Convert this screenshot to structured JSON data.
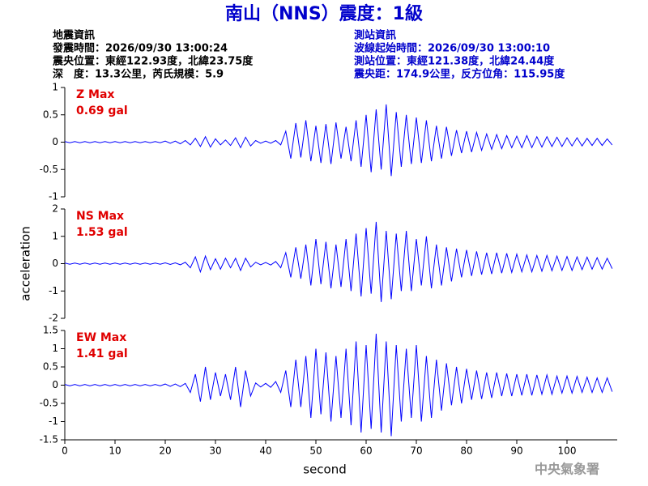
{
  "header": {
    "title": "南山（NNS）震度：1級",
    "left": [
      "地震資訊",
      "發震時間：2026/09/30 13:00:24",
      "震央位置：東經122.93度，北緯23.75度",
      "深　度：13.3公里，芮氏規模：5.9"
    ],
    "right": [
      "測站資訊",
      "波線起始時間：2026/09/30 13:00:10",
      "測站位置：東經121.38度，北緯24.44度",
      "震央距：174.9公里，反方位角：115.95度"
    ],
    "watermark": "中央氣象署"
  },
  "chart_data": [
    {
      "type": "line",
      "annotations": [
        "Z Max",
        "0.69 gal"
      ],
      "color": "#0000ff",
      "xlim": [
        0,
        110
      ],
      "ylim": [
        -1,
        1
      ],
      "yticks": [
        -1,
        -0.5,
        0,
        0.5,
        1
      ],
      "x": [
        0,
        1,
        2,
        3,
        4,
        5,
        6,
        7,
        8,
        9,
        10,
        11,
        12,
        13,
        14,
        15,
        16,
        17,
        18,
        19,
        20,
        21,
        22,
        23,
        24,
        25,
        26,
        27,
        28,
        29,
        30,
        31,
        32,
        33,
        34,
        35,
        36,
        37,
        38,
        39,
        40,
        41,
        42,
        43,
        44,
        45,
        46,
        47,
        48,
        49,
        50,
        51,
        52,
        53,
        54,
        55,
        56,
        57,
        58,
        59,
        60,
        61,
        62,
        63,
        64,
        65,
        66,
        67,
        68,
        69,
        70,
        71,
        72,
        73,
        74,
        75,
        76,
        77,
        78,
        79,
        80,
        81,
        82,
        83,
        84,
        85,
        86,
        87,
        88,
        89,
        90,
        91,
        92,
        93,
        94,
        95,
        96,
        97,
        98,
        99,
        100,
        101,
        102,
        103,
        104,
        105,
        106,
        107,
        108,
        109
      ],
      "values": [
        0.01,
        -0.01,
        0.01,
        -0.01,
        0.01,
        -0.01,
        0.01,
        -0.01,
        0.01,
        -0.01,
        0.01,
        -0.01,
        0.01,
        -0.01,
        0.01,
        -0.01,
        0.01,
        -0.01,
        0.01,
        -0.01,
        0.02,
        -0.02,
        0.02,
        -0.03,
        0.03,
        -0.05,
        0.07,
        -0.08,
        0.1,
        -0.09,
        0.06,
        -0.05,
        0.04,
        -0.06,
        0.08,
        -0.1,
        0.09,
        -0.07,
        0.03,
        -0.02,
        0.02,
        -0.02,
        0.03,
        -0.05,
        0.2,
        -0.3,
        0.35,
        -0.28,
        0.4,
        -0.35,
        0.3,
        -0.38,
        0.33,
        -0.4,
        0.36,
        -0.3,
        0.28,
        -0.35,
        0.4,
        -0.45,
        0.5,
        -0.55,
        0.6,
        -0.5,
        0.69,
        -0.62,
        0.55,
        -0.45,
        0.5,
        -0.4,
        0.45,
        -0.38,
        0.4,
        -0.35,
        0.3,
        -0.3,
        0.28,
        -0.25,
        0.22,
        -0.2,
        0.2,
        -0.18,
        0.18,
        -0.15,
        0.15,
        -0.13,
        0.14,
        -0.12,
        0.12,
        -0.1,
        0.11,
        -0.1,
        0.12,
        -0.1,
        0.1,
        -0.09,
        0.1,
        -0.08,
        0.09,
        -0.08,
        0.08,
        -0.07,
        0.08,
        -0.07,
        0.07,
        -0.06,
        0.07,
        -0.06,
        0.06,
        -0.05
      ]
    },
    {
      "type": "line",
      "annotations": [
        "NS Max",
        "1.53 gal"
      ],
      "color": "#0000ff",
      "ylabel": "acceleration",
      "xlim": [
        0,
        110
      ],
      "ylim": [
        -2,
        2
      ],
      "yticks": [
        -2,
        -1,
        0,
        1,
        2
      ],
      "x": [
        0,
        1,
        2,
        3,
        4,
        5,
        6,
        7,
        8,
        9,
        10,
        11,
        12,
        13,
        14,
        15,
        16,
        17,
        18,
        19,
        20,
        21,
        22,
        23,
        24,
        25,
        26,
        27,
        28,
        29,
        30,
        31,
        32,
        33,
        34,
        35,
        36,
        37,
        38,
        39,
        40,
        41,
        42,
        43,
        44,
        45,
        46,
        47,
        48,
        49,
        50,
        51,
        52,
        53,
        54,
        55,
        56,
        57,
        58,
        59,
        60,
        61,
        62,
        63,
        64,
        65,
        66,
        67,
        68,
        69,
        70,
        71,
        72,
        73,
        74,
        75,
        76,
        77,
        78,
        79,
        80,
        81,
        82,
        83,
        84,
        85,
        86,
        87,
        88,
        89,
        90,
        91,
        92,
        93,
        94,
        95,
        96,
        97,
        98,
        99,
        100,
        101,
        102,
        103,
        104,
        105,
        106,
        107,
        108,
        109
      ],
      "values": [
        0.02,
        -0.02,
        0.02,
        -0.02,
        0.02,
        -0.02,
        0.02,
        -0.02,
        0.02,
        -0.02,
        0.02,
        -0.02,
        0.02,
        -0.02,
        0.02,
        -0.02,
        0.02,
        -0.02,
        0.02,
        -0.02,
        0.03,
        -0.03,
        0.03,
        -0.04,
        0.05,
        -0.15,
        0.25,
        -0.3,
        0.28,
        -0.22,
        0.18,
        -0.2,
        0.2,
        -0.15,
        0.2,
        -0.25,
        0.2,
        -0.12,
        0.05,
        -0.04,
        0.04,
        -0.05,
        0.08,
        -0.15,
        0.4,
        -0.5,
        0.6,
        -0.55,
        0.7,
        -0.8,
        0.9,
        -0.75,
        0.8,
        -0.9,
        0.7,
        -0.85,
        0.9,
        -1,
        1.1,
        -1.2,
        1.3,
        -1.1,
        1.53,
        -1.4,
        1.2,
        -1.3,
        1.1,
        -1,
        1.2,
        -1,
        0.9,
        -0.8,
        1,
        -0.9,
        0.7,
        -0.8,
        0.6,
        -0.65,
        0.55,
        -0.5,
        0.5,
        -0.45,
        0.45,
        -0.4,
        0.4,
        -0.38,
        0.4,
        -0.35,
        0.38,
        -0.32,
        0.35,
        -0.3,
        0.32,
        -0.3,
        0.3,
        -0.28,
        0.3,
        -0.26,
        0.28,
        -0.25,
        0.26,
        -0.25,
        0.25,
        -0.22,
        0.24,
        -0.2,
        0.22,
        -0.2,
        0.2,
        -0.18
      ]
    },
    {
      "type": "line",
      "annotations": [
        "EW Max",
        "1.41 gal"
      ],
      "color": "#0000ff",
      "xlabel": "second",
      "xlim": [
        0,
        110
      ],
      "ylim": [
        -1.5,
        1.5
      ],
      "yticks": [
        -1.5,
        -1,
        -0.5,
        0,
        0.5,
        1,
        1.5
      ],
      "xticks": [
        0,
        10,
        20,
        30,
        40,
        50,
        60,
        70,
        80,
        90,
        100
      ],
      "x": [
        0,
        1,
        2,
        3,
        4,
        5,
        6,
        7,
        8,
        9,
        10,
        11,
        12,
        13,
        14,
        15,
        16,
        17,
        18,
        19,
        20,
        21,
        22,
        23,
        24,
        25,
        26,
        27,
        28,
        29,
        30,
        31,
        32,
        33,
        34,
        35,
        36,
        37,
        38,
        39,
        40,
        41,
        42,
        43,
        44,
        45,
        46,
        47,
        48,
        49,
        50,
        51,
        52,
        53,
        54,
        55,
        56,
        57,
        58,
        59,
        60,
        61,
        62,
        63,
        64,
        65,
        66,
        67,
        68,
        69,
        70,
        71,
        72,
        73,
        74,
        75,
        76,
        77,
        78,
        79,
        80,
        81,
        82,
        83,
        84,
        85,
        86,
        87,
        88,
        89,
        90,
        91,
        92,
        93,
        94,
        95,
        96,
        97,
        98,
        99,
        100,
        101,
        102,
        103,
        104,
        105,
        106,
        107,
        108,
        109
      ],
      "values": [
        0.02,
        -0.02,
        0.02,
        -0.02,
        0.02,
        -0.02,
        0.02,
        -0.02,
        0.02,
        -0.02,
        0.02,
        -0.02,
        0.02,
        -0.02,
        0.02,
        -0.02,
        0.02,
        -0.02,
        0.02,
        -0.02,
        0.03,
        -0.03,
        0.03,
        -0.04,
        0.05,
        -0.2,
        0.3,
        -0.45,
        0.5,
        -0.4,
        0.35,
        -0.3,
        0.3,
        -0.4,
        0.5,
        -0.6,
        0.4,
        -0.3,
        0.06,
        -0.05,
        0.05,
        -0.06,
        0.1,
        -0.2,
        0.4,
        -0.6,
        0.7,
        -0.6,
        0.8,
        -0.9,
        1,
        -0.8,
        0.9,
        -1,
        0.8,
        -0.9,
        1,
        -1.1,
        1.2,
        -1.3,
        1.1,
        -1.2,
        1.41,
        -1.3,
        1.2,
        -1.4,
        1.1,
        -1,
        1,
        -0.9,
        1.1,
        -1,
        0.8,
        -0.9,
        0.7,
        -0.7,
        0.6,
        -0.55,
        0.5,
        -0.5,
        0.45,
        -0.4,
        0.4,
        -0.38,
        0.35,
        -0.35,
        0.35,
        -0.3,
        0.32,
        -0.3,
        0.3,
        -0.28,
        0.3,
        -0.28,
        0.28,
        -0.25,
        0.28,
        -0.25,
        0.25,
        -0.22,
        0.25,
        -0.22,
        0.24,
        -0.2,
        0.22,
        -0.2,
        0.2,
        -0.2,
        0.2,
        -0.18
      ]
    }
  ]
}
